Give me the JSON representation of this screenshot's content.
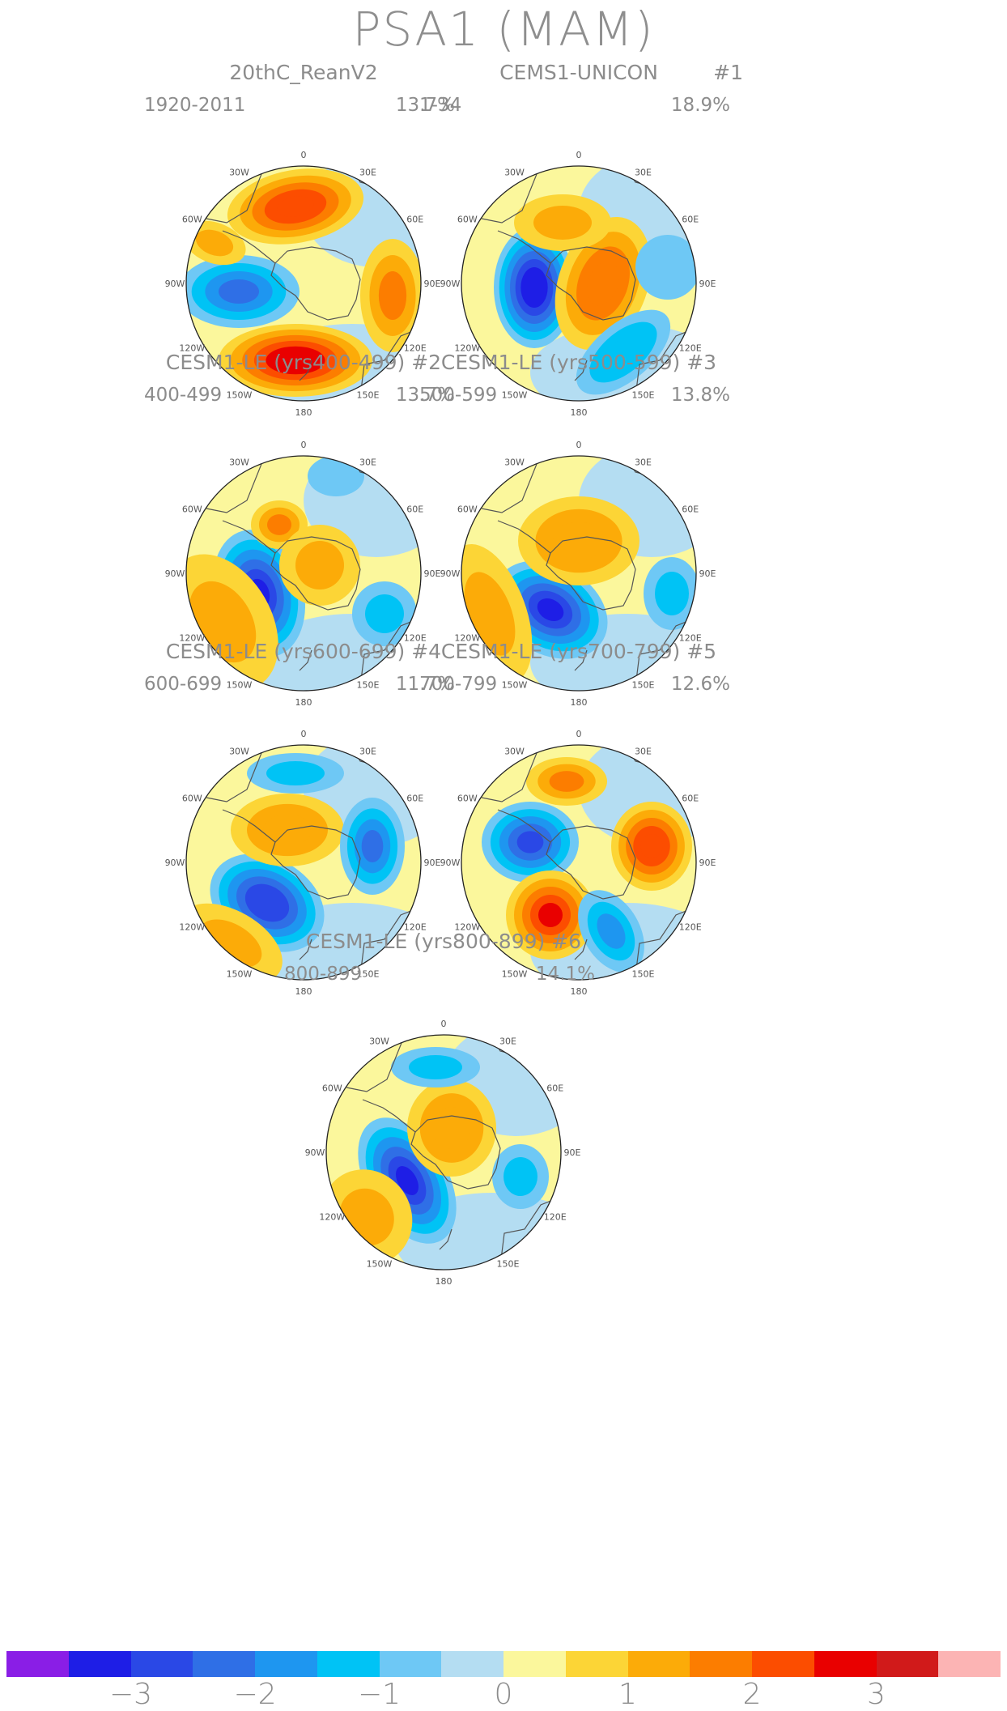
{
  "title": "PSA1 (MAM)",
  "lon_labels": [
    "0",
    "30E",
    "60E",
    "90E",
    "120E",
    "150E",
    "180",
    "150W",
    "120W",
    "90W",
    "60W",
    "30W"
  ],
  "panels": [
    {
      "title": "20thC_ReanV2",
      "run": "",
      "years": "1920-2011",
      "pct": "13.7%",
      "blobs": [
        {
          "dx": -10,
          "dy": -95,
          "rx": 85,
          "ry": 45,
          "rot": -10,
          "v": 2.2
        },
        {
          "dx": -10,
          "dy": 95,
          "rx": 95,
          "ry": 45,
          "rot": 0,
          "v": 2.6
        },
        {
          "dx": -80,
          "dy": 10,
          "rx": 75,
          "ry": 45,
          "rot": 0,
          "v": -1.8
        },
        {
          "dx": 110,
          "dy": 15,
          "rx": 40,
          "ry": 70,
          "rot": 0,
          "v": 1.5
        },
        {
          "dx": -110,
          "dy": -50,
          "rx": 40,
          "ry": 25,
          "rot": 20,
          "v": 0.8
        }
      ]
    },
    {
      "title": "CEMS1-UNICON",
      "run": "#1",
      "years": "1-34",
      "pct": "18.9%",
      "blobs": [
        {
          "dx": -55,
          "dy": 5,
          "rx": 50,
          "ry": 75,
          "rot": 0,
          "v": -3.2
        },
        {
          "dx": 30,
          "dy": 0,
          "rx": 55,
          "ry": 85,
          "rot": 20,
          "v": 1.6
        },
        {
          "dx": 55,
          "dy": 85,
          "rx": 70,
          "ry": 35,
          "rot": -40,
          "v": -1.2
        },
        {
          "dx": -20,
          "dy": -75,
          "rx": 60,
          "ry": 35,
          "rot": 0,
          "v": 0.8
        },
        {
          "dx": 110,
          "dy": -20,
          "rx": 40,
          "ry": 40,
          "rot": 0,
          "v": -0.5
        }
      ]
    },
    {
      "title": "CESM1-LE (yrs400-499)",
      "run": "#2",
      "years": "400-499",
      "pct": "13.7%",
      "blobs": [
        {
          "dx": -55,
          "dy": 25,
          "rx": 55,
          "ry": 80,
          "rot": -15,
          "v": -3.0
        },
        {
          "dx": -30,
          "dy": -60,
          "rx": 35,
          "ry": 30,
          "rot": 0,
          "v": 1.4
        },
        {
          "dx": 20,
          "dy": -10,
          "rx": 50,
          "ry": 50,
          "rot": 0,
          "v": 1.0
        },
        {
          "dx": -100,
          "dy": 60,
          "rx": 60,
          "ry": 90,
          "rot": -30,
          "v": 0.9
        },
        {
          "dx": 100,
          "dy": 50,
          "rx": 40,
          "ry": 40,
          "rot": 0,
          "v": -0.8
        },
        {
          "dx": 40,
          "dy": -120,
          "rx": 35,
          "ry": 25,
          "rot": 0,
          "v": -0.6
        }
      ]
    },
    {
      "title": "CESM1-LE (yrs500-599)",
      "run": "#3",
      "years": "500-599",
      "pct": "13.8%",
      "blobs": [
        {
          "dx": -35,
          "dy": 45,
          "rx": 75,
          "ry": 55,
          "rot": 30,
          "v": -3.0
        },
        {
          "dx": 0,
          "dy": -40,
          "rx": 75,
          "ry": 55,
          "rot": 0,
          "v": 1.2
        },
        {
          "dx": -110,
          "dy": 50,
          "rx": 45,
          "ry": 90,
          "rot": -20,
          "v": 0.9
        },
        {
          "dx": 115,
          "dy": 25,
          "rx": 35,
          "ry": 45,
          "rot": 0,
          "v": -0.8
        }
      ]
    },
    {
      "title": "CESM1-LE (yrs600-699)",
      "run": "#4",
      "years": "600-699",
      "pct": "11.7%",
      "blobs": [
        {
          "dx": -45,
          "dy": 50,
          "rx": 75,
          "ry": 55,
          "rot": 30,
          "v": -2.6
        },
        {
          "dx": -20,
          "dy": -40,
          "rx": 70,
          "ry": 45,
          "rot": 0,
          "v": 1.1
        },
        {
          "dx": 85,
          "dy": -20,
          "rx": 40,
          "ry": 60,
          "rot": 0,
          "v": -1.8
        },
        {
          "dx": -10,
          "dy": -110,
          "rx": 60,
          "ry": 25,
          "rot": 0,
          "v": -0.8
        },
        {
          "dx": -90,
          "dy": 100,
          "rx": 70,
          "ry": 40,
          "rot": 30,
          "v": 0.9
        }
      ]
    },
    {
      "title": "CESM1-LE (yrs700-799)",
      "run": "#5",
      "years": "700-799",
      "pct": "12.6%",
      "blobs": [
        {
          "dx": -60,
          "dy": -25,
          "rx": 60,
          "ry": 50,
          "rot": 0,
          "v": -2.3
        },
        {
          "dx": -35,
          "dy": 65,
          "rx": 55,
          "ry": 55,
          "rot": 0,
          "v": 2.3
        },
        {
          "dx": 90,
          "dy": -20,
          "rx": 50,
          "ry": 55,
          "rot": 0,
          "v": 2.2
        },
        {
          "dx": -15,
          "dy": -100,
          "rx": 50,
          "ry": 30,
          "rot": 0,
          "v": 1.4
        },
        {
          "dx": 40,
          "dy": 85,
          "rx": 35,
          "ry": 55,
          "rot": -30,
          "v": -1.5
        }
      ]
    },
    {
      "title": "CESM1-LE (yrs800-899)",
      "run": "#6",
      "years": "800-899",
      "pct": "14.1%",
      "blobs": [
        {
          "dx": -45,
          "dy": 35,
          "rx": 50,
          "ry": 85,
          "rot": -30,
          "v": -3.0
        },
        {
          "dx": 10,
          "dy": -30,
          "rx": 55,
          "ry": 60,
          "rot": 0,
          "v": 1.1
        },
        {
          "dx": -10,
          "dy": -105,
          "rx": 55,
          "ry": 25,
          "rot": 0,
          "v": -1.0
        },
        {
          "dx": 95,
          "dy": 30,
          "rx": 35,
          "ry": 40,
          "rot": 0,
          "v": -0.8
        },
        {
          "dx": -95,
          "dy": 80,
          "rx": 55,
          "ry": 60,
          "rot": -30,
          "v": 0.9
        }
      ]
    }
  ],
  "colorbar": {
    "colors": [
      "#8a1ee6",
      "#1e1ee6",
      "#2a48e6",
      "#2f6fe6",
      "#1e96f0",
      "#00c3f5",
      "#6ec8f5",
      "#b4ddf2",
      "#fbf79c",
      "#fcd536",
      "#fcab08",
      "#fc7d00",
      "#fc4d00",
      "#e90000",
      "#d11a1a",
      "#fcb4b4"
    ],
    "tick_labels": [
      "-3",
      "-2",
      "-1",
      "0",
      "1",
      "2",
      "3"
    ],
    "tick_values": [
      -3,
      -2,
      -1,
      0,
      1,
      2,
      3
    ]
  }
}
